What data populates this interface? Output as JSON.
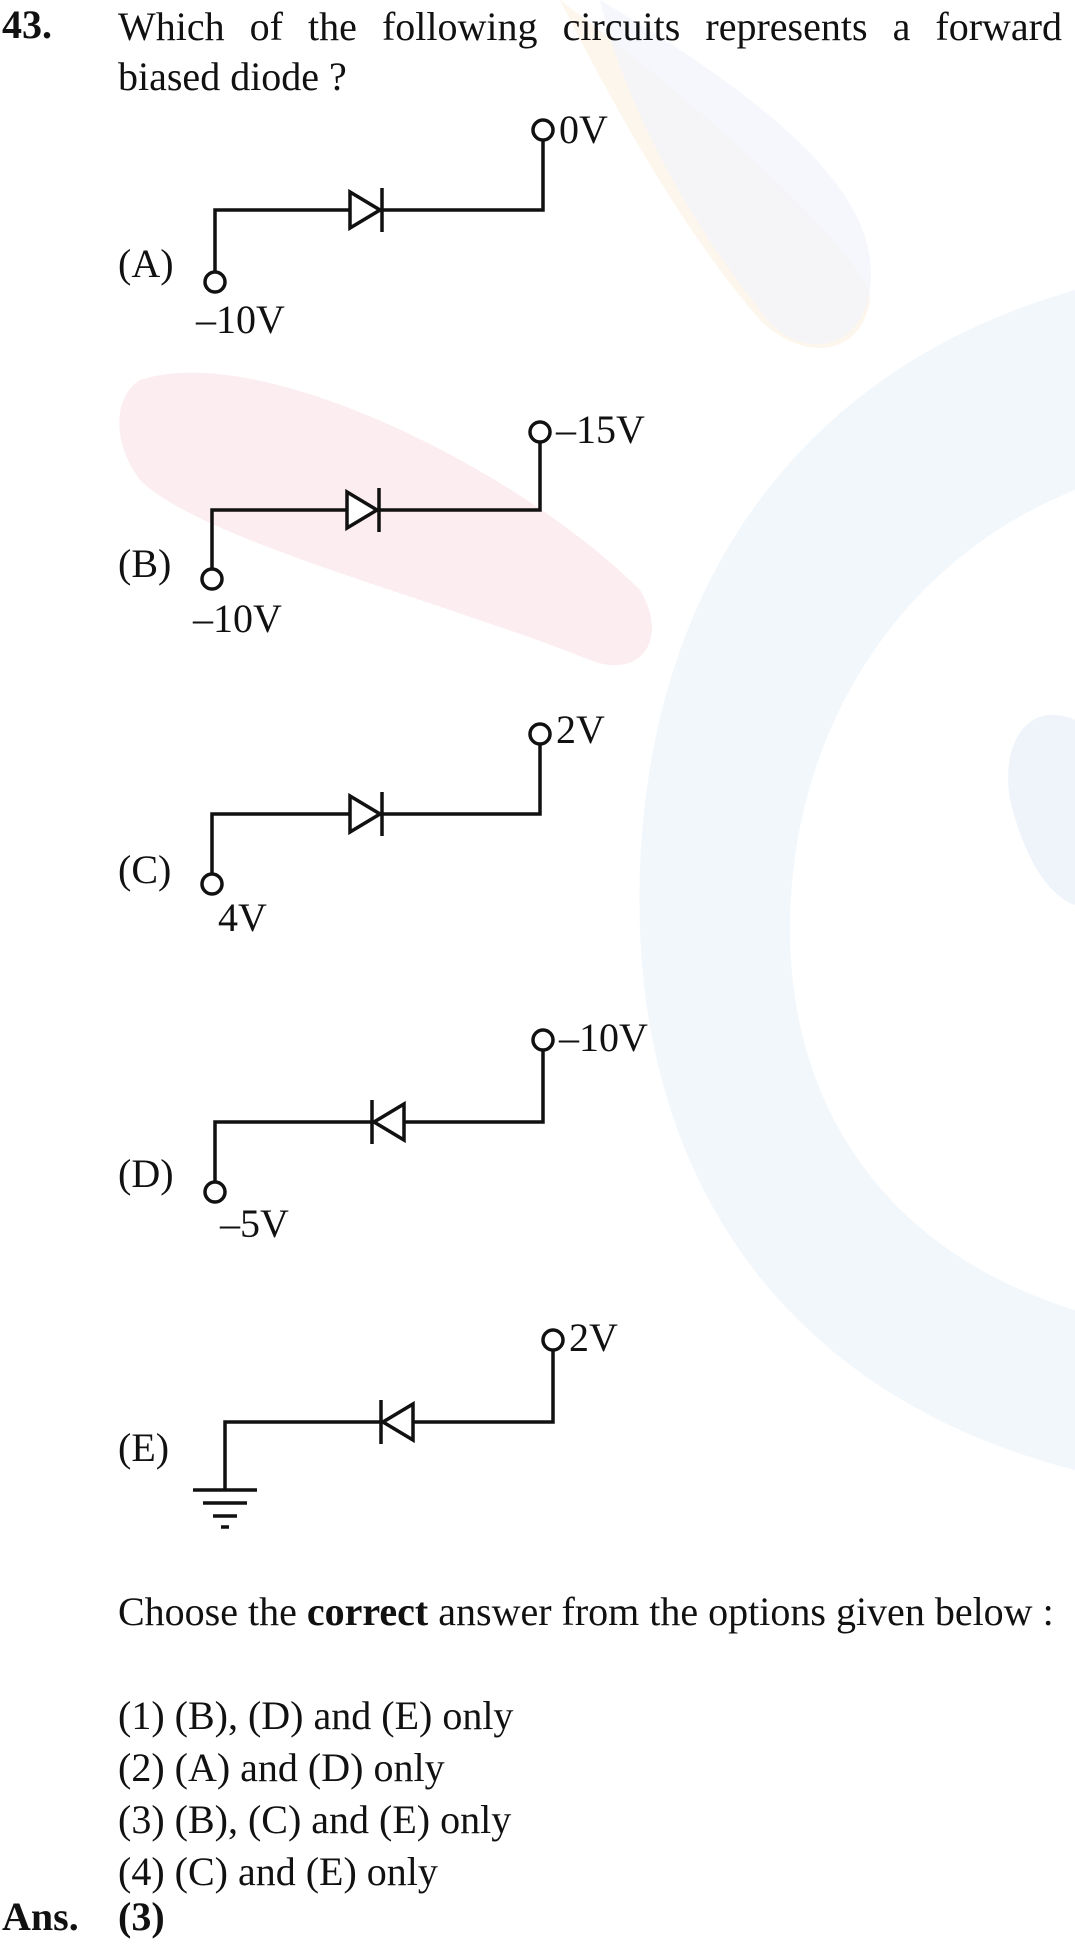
{
  "question": {
    "number": "43.",
    "text": "Which of the following circuits represents a forward biased diode ?"
  },
  "options": [
    {
      "label": "(A)",
      "left_voltage": "–10V",
      "right_voltage": "0V",
      "diode_direction": "right"
    },
    {
      "label": "(B)",
      "left_voltage": "–10V",
      "right_voltage": "–15V",
      "diode_direction": "right"
    },
    {
      "label": "(C)",
      "left_voltage": "4V",
      "right_voltage": "2V",
      "diode_direction": "right"
    },
    {
      "label": "(D)",
      "left_voltage": "–5V",
      "right_voltage": "–10V",
      "diode_direction": "left"
    },
    {
      "label": "(E)",
      "left_voltage": "",
      "right_voltage": "2V",
      "diode_direction": "left",
      "left_terminal": "ground"
    }
  ],
  "instruction": {
    "prefix": "Choose the ",
    "emphasis": "correct",
    "suffix": " answer from the options given below :"
  },
  "answer_choices": [
    "(1) (B), (D) and (E) only",
    "(2) (A) and (D) only",
    "(3) (B), (C) and (E) only",
    "(4) (C) and (E) only"
  ],
  "answer": {
    "label": "Ans.",
    "value": "(3)"
  },
  "colors": {
    "text": "#111111",
    "watermark_blue": "#eef3fb",
    "watermark_pink": "#fbeef0",
    "watermark_orange": "#fdf4e8"
  }
}
